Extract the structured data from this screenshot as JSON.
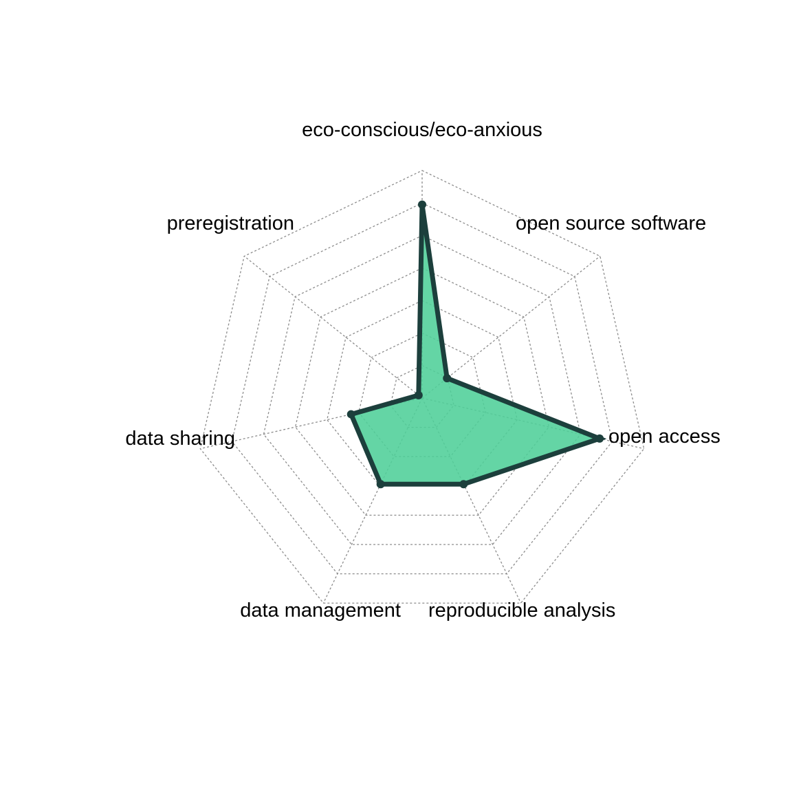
{
  "chart_data": {
    "type": "radar",
    "title": "",
    "axes": [
      "eco-conscious/eco-anxious",
      "open source software",
      "open access",
      "reproducible analysis",
      "data management",
      "data sharing",
      "preregistration"
    ],
    "series": [
      {
        "values": [
          0.85,
          0.14,
          0.8,
          0.42,
          0.42,
          0.32,
          0.02
        ],
        "fill_color": "#4fcf98",
        "line_color": "#1c3f3c"
      }
    ],
    "range": [
      0,
      1
    ],
    "grid_levels": 7,
    "grid_style": "dotted",
    "legend": "none"
  }
}
